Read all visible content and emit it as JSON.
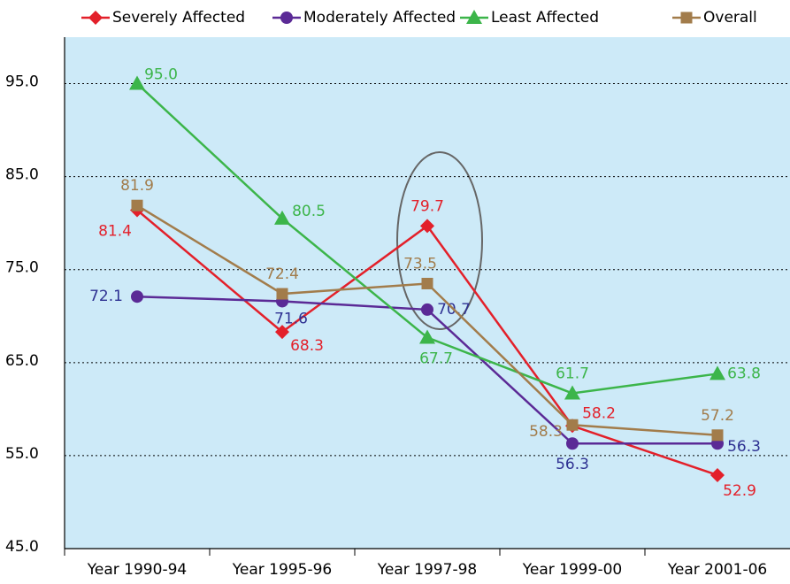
{
  "chart_data": {
    "type": "line",
    "categories": [
      "Year 1990-94",
      "Year 1995-96",
      "Year 1997-98",
      "Year 1999-00",
      "Year 2001-06"
    ],
    "ylim": [
      45,
      100
    ],
    "yticks": [
      {
        "value": 45,
        "label": "45.0"
      },
      {
        "value": 55,
        "label": "55.0"
      },
      {
        "value": 65,
        "label": "65.0"
      },
      {
        "value": 75,
        "label": "75.0"
      },
      {
        "value": 85,
        "label": "85.0"
      },
      {
        "value": 95,
        "label": "95.0"
      }
    ],
    "grid": true,
    "legend": "top",
    "series": [
      {
        "name": "Severely Affected",
        "color": "#e3202a",
        "label_color": "#e3202a",
        "marker": "diamond",
        "values": [
          81.4,
          68.3,
          79.7,
          58.2,
          52.9
        ],
        "value_labels": [
          "81.4",
          "68.3",
          "79.7",
          "58.2",
          "52.9"
        ]
      },
      {
        "name": "Moderately Affected",
        "color": "#5b2a96",
        "label_color": "#2e3192",
        "marker": "circle",
        "values": [
          72.1,
          71.6,
          70.7,
          56.3,
          56.3
        ],
        "value_labels": [
          "72.1",
          "71.6",
          "70.7",
          "56.3",
          "56.3"
        ]
      },
      {
        "name": "Least Affected",
        "color": "#3cb54a",
        "label_color": "#3cb54a",
        "marker": "triangle",
        "values": [
          95.0,
          80.5,
          67.7,
          61.7,
          63.8
        ],
        "value_labels": [
          "95.0",
          "80.5",
          "67.7",
          "61.7",
          "63.8"
        ]
      },
      {
        "name": "Overall",
        "color": "#a27c4b",
        "label_color": "#a27c4b",
        "marker": "square",
        "values": [
          81.9,
          72.4,
          73.5,
          58.3,
          57.2
        ],
        "value_labels": [
          "81.9",
          "72.4",
          "73.5",
          "58.3",
          "57.2"
        ]
      }
    ]
  }
}
